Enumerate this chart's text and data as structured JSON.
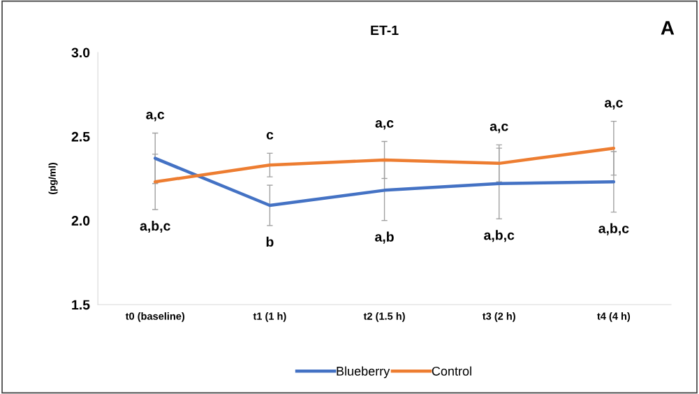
{
  "chart_data": {
    "type": "line",
    "title": "ET-1",
    "ylabel": "(pg/ml)",
    "categories": [
      "t0 (baseline)",
      "t1 (1 h)",
      "t2 (1.5 h)",
      "t3 (2 h)",
      "t4 (4 h)"
    ],
    "series": [
      {
        "name": "Blueberry",
        "color": "#4472c4",
        "values": [
          2.37,
          2.09,
          2.18,
          2.22,
          2.23
        ],
        "errors": [
          0.15,
          0.12,
          0.18,
          0.21,
          0.18
        ]
      },
      {
        "name": "Control",
        "color": "#ed7d31",
        "values": [
          2.23,
          2.33,
          2.36,
          2.34,
          2.43
        ],
        "errors": [
          0.165,
          0.07,
          0.11,
          0.11,
          0.16
        ]
      }
    ],
    "ylim": [
      1.5,
      3.0
    ],
    "yticks": [
      {
        "value": 1.5,
        "label": "1.5"
      },
      {
        "value": 2.0,
        "label": "2.0"
      },
      {
        "value": 2.5,
        "label": "2.5"
      },
      {
        "value": 3.0,
        "label": "3.0"
      }
    ],
    "grid": false,
    "legend": "bottom",
    "marker": "none",
    "line_style": "solid",
    "annotations": [
      "A",
      "a,c",
      "c",
      "a,c",
      "a,c",
      "a,c",
      "a,b,c",
      "b",
      "a,b",
      "a,b,c",
      "a,b,c"
    ]
  }
}
